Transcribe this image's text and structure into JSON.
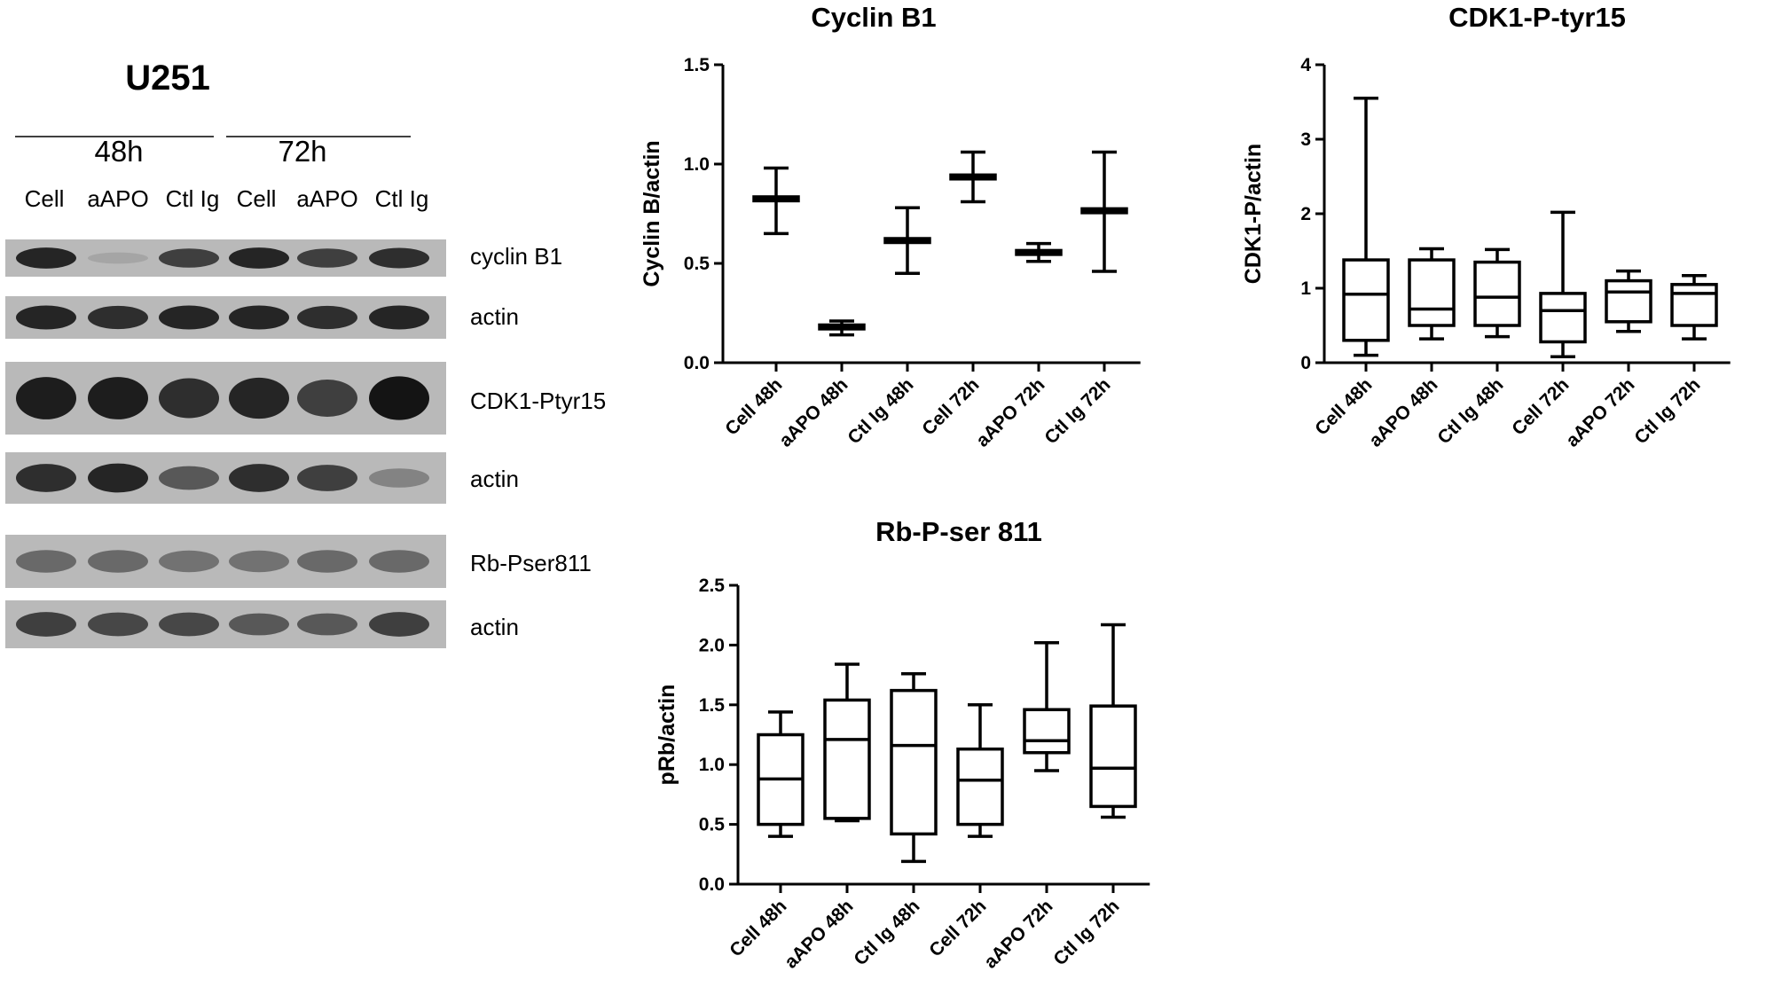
{
  "western_blot": {
    "title": "U251",
    "timepoints": [
      "48h",
      "72h"
    ],
    "lanes": [
      "Cell",
      "aAPO",
      "Ctl Ig",
      "Cell",
      "aAPO",
      "Ctl Ig"
    ],
    "blots": [
      {
        "label": "cyclin B1",
        "intensities": [
          0.9,
          0.15,
          0.75,
          0.9,
          0.75,
          0.85
        ]
      },
      {
        "label": "actin",
        "intensities": [
          0.9,
          0.85,
          0.9,
          0.9,
          0.85,
          0.9
        ]
      },
      {
        "label": "CDK1-Ptyr15",
        "intensities": [
          0.95,
          0.95,
          0.85,
          0.9,
          0.75,
          1.0
        ]
      },
      {
        "label": "actin",
        "intensities": [
          0.85,
          0.9,
          0.6,
          0.85,
          0.75,
          0.35
        ]
      },
      {
        "label": "Rb-Pser811",
        "intensities": [
          0.5,
          0.5,
          0.45,
          0.45,
          0.5,
          0.5
        ]
      },
      {
        "label": "actin",
        "intensities": [
          0.75,
          0.7,
          0.7,
          0.6,
          0.6,
          0.75
        ]
      }
    ]
  },
  "chart_data": [
    {
      "type": "box",
      "title": "Cyclin B1",
      "xlabel": "",
      "ylabel": "Cyclin B/actin",
      "ylim": [
        0,
        1.5
      ],
      "yticks": [
        "0.0",
        "0.5",
        "1.0",
        "1.5"
      ],
      "ytick_values": [
        0,
        0.5,
        1.0,
        1.5
      ],
      "categories": [
        "Cell 48h",
        "aAPO 48h",
        "Ctl Ig 48h",
        "Cell 72h",
        "aAPO 72h",
        "Ctl Ig 72h"
      ],
      "boxes": [
        {
          "min": 0.65,
          "q1": 0.815,
          "median": 0.825,
          "q3": 0.835,
          "max": 0.98
        },
        {
          "min": 0.14,
          "q1": 0.17,
          "median": 0.18,
          "q3": 0.19,
          "max": 0.21
        },
        {
          "min": 0.45,
          "q1": 0.605,
          "median": 0.615,
          "q3": 0.625,
          "max": 0.78
        },
        {
          "min": 0.81,
          "q1": 0.925,
          "median": 0.935,
          "q3": 0.945,
          "max": 1.06
        },
        {
          "min": 0.51,
          "q1": 0.545,
          "median": 0.555,
          "q3": 0.565,
          "max": 0.6
        },
        {
          "min": 0.46,
          "q1": 0.755,
          "median": 0.765,
          "q3": 0.775,
          "max": 1.06
        }
      ]
    },
    {
      "type": "box",
      "title": "CDK1-P-tyr15",
      "xlabel": "",
      "ylabel": "CDK1-P/actin",
      "ylim": [
        0,
        4
      ],
      "yticks": [
        "0",
        "1",
        "2",
        "3",
        "4"
      ],
      "ytick_values": [
        0,
        1,
        2,
        3,
        4
      ],
      "categories": [
        "Cell 48h",
        "aAPO 48h",
        "Ctl Ig 48h",
        "Cell 72h",
        "aAPO 72h",
        "Ctl Ig 72h"
      ],
      "boxes": [
        {
          "min": 0.1,
          "q1": 0.3,
          "median": 0.92,
          "q3": 1.38,
          "max": 3.55
        },
        {
          "min": 0.32,
          "q1": 0.5,
          "median": 0.72,
          "q3": 1.38,
          "max": 1.53
        },
        {
          "min": 0.35,
          "q1": 0.5,
          "median": 0.88,
          "q3": 1.35,
          "max": 1.52
        },
        {
          "min": 0.08,
          "q1": 0.28,
          "median": 0.7,
          "q3": 0.93,
          "max": 2.02
        },
        {
          "min": 0.42,
          "q1": 0.55,
          "median": 0.95,
          "q3": 1.1,
          "max": 1.23
        },
        {
          "min": 0.32,
          "q1": 0.5,
          "median": 0.93,
          "q3": 1.05,
          "max": 1.17
        }
      ]
    },
    {
      "type": "box",
      "title": "Rb-P-ser 811",
      "xlabel": "",
      "ylabel": "pRb/actin",
      "ylim": [
        0,
        2.5
      ],
      "yticks": [
        "0.0",
        "0.5",
        "1.0",
        "1.5",
        "2.0",
        "2.5"
      ],
      "ytick_values": [
        0,
        0.5,
        1.0,
        1.5,
        2.0,
        2.5
      ],
      "categories": [
        "Cell 48h",
        "aAPO 48h",
        "Ctl Ig 48h",
        "Cell 72h",
        "aAPO 72h",
        "Ctl Ig 72h"
      ],
      "boxes": [
        {
          "min": 0.4,
          "q1": 0.5,
          "median": 0.88,
          "q3": 1.25,
          "max": 1.44
        },
        {
          "min": 0.53,
          "q1": 0.55,
          "median": 1.21,
          "q3": 1.54,
          "max": 1.84
        },
        {
          "min": 0.19,
          "q1": 0.42,
          "median": 1.16,
          "q3": 1.62,
          "max": 1.76
        },
        {
          "min": 0.4,
          "q1": 0.5,
          "median": 0.87,
          "q3": 1.13,
          "max": 1.5
        },
        {
          "min": 0.95,
          "q1": 1.1,
          "median": 1.2,
          "q3": 1.46,
          "max": 2.02
        },
        {
          "min": 0.56,
          "q1": 0.65,
          "median": 0.97,
          "q3": 1.49,
          "max": 2.17
        }
      ]
    }
  ]
}
